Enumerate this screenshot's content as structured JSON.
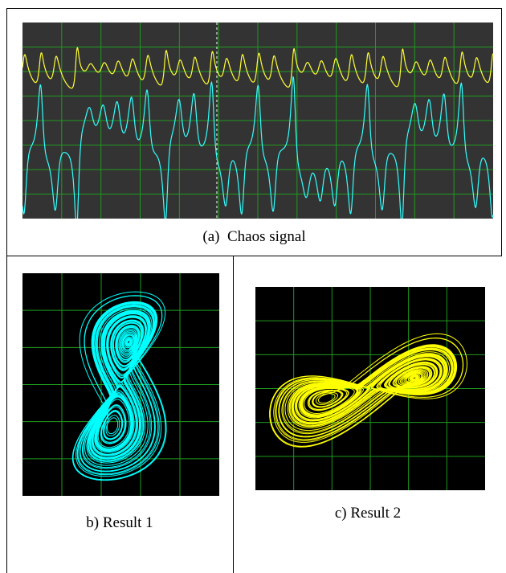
{
  "panels": [
    {
      "caption": "(a)  Chaos signal"
    },
    {
      "caption": "b) Result 1"
    },
    {
      "caption": "c) Result 2"
    }
  ]
}
